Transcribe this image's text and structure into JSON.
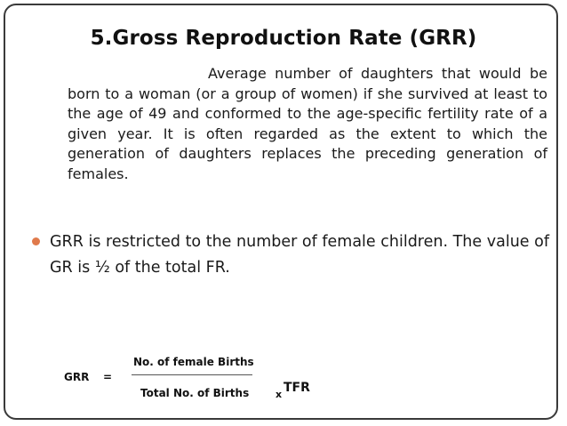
{
  "slide": {
    "title": "5.Gross Reproduction Rate (GRR)",
    "definition_lead": "Average number of daughters that would",
    "definition_body": "be born to a woman (or a group of women) if she survived at least to the age of 49 and conformed to the age-specific fertility rate of a given year. It is often regarded as the extent to which the generation of daughters replaces the preceding generation of females.",
    "bullet": "GRR is restricted to the number of female children. The value of GR is ½ of the total FR.",
    "bullet_color": "#e07a4b",
    "formula": {
      "lhs": "GRR",
      "equals": "=",
      "numerator": "No. of female Births",
      "denominator": "Total No. of Births",
      "times": "x",
      "multiplier": "TFR"
    }
  }
}
